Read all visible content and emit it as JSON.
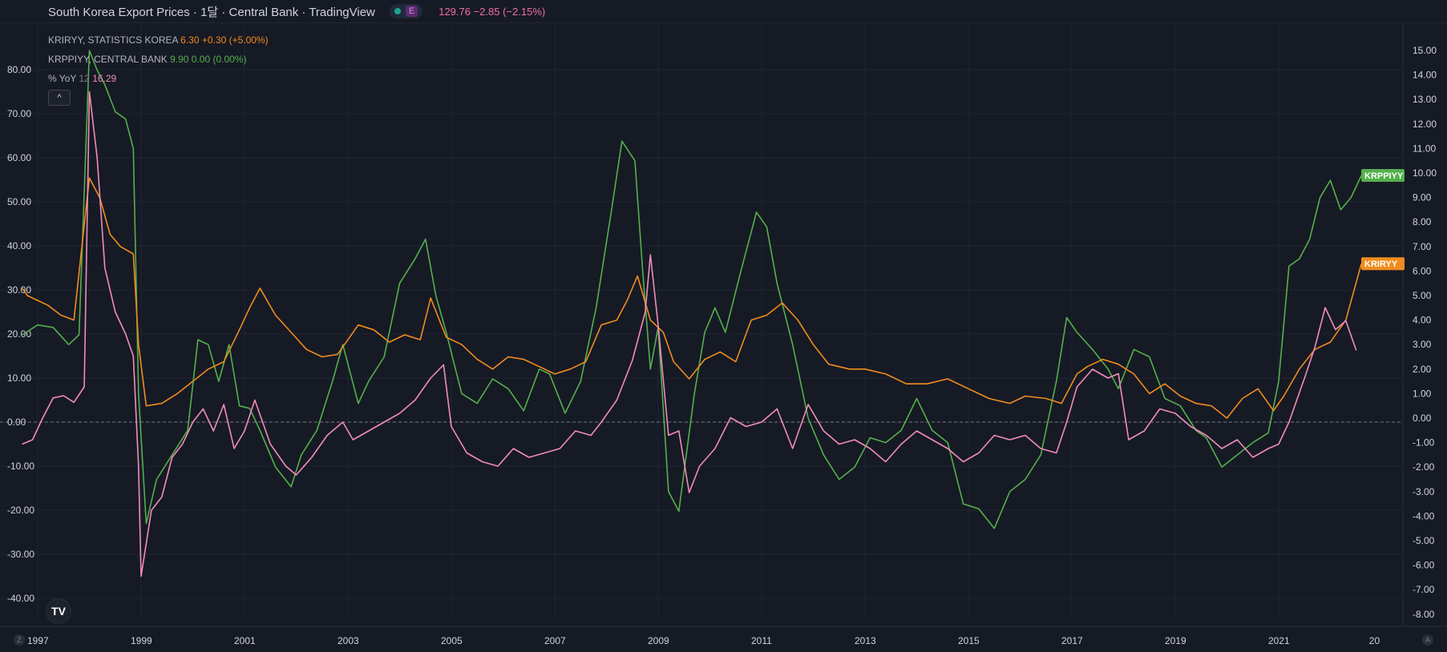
{
  "topbar": {
    "title": "South Korea Export Prices · 1달 · Central Bank · TradingView",
    "badge_letter": "E",
    "price_text": "129.76 −2.85 (−2.15%)"
  },
  "legend": {
    "krir": {
      "name": "KRIRYY, STATISTICS KOREA",
      "value": "6.30",
      "change": "+0.30 (+5.00%)"
    },
    "krpp": {
      "name": "KRPPIYY, CENTRAL BANK",
      "value": "9.90",
      "change": "0.00 (0.00%)"
    },
    "yoy": {
      "name": "% YoY",
      "param": "12",
      "value": "16.29"
    },
    "collapse_icon": "chevron-up-icon"
  },
  "logo_text": "TV",
  "corner_left": "Z",
  "corner_right": "A",
  "colors": {
    "background": "#161a25",
    "krir": "#f08c1e",
    "krpp": "#54b04b",
    "yoy": "#f28cba",
    "grid": "#202431",
    "axis_text": "#d1d4dc"
  },
  "chart_data": {
    "type": "line",
    "x_axis": {
      "ticks": [
        "1997",
        "1999",
        "2001",
        "2003",
        "2005",
        "2007",
        "2009",
        "2011",
        "2013",
        "2015",
        "2017",
        "2019",
        "2021",
        "20"
      ]
    },
    "left_axis": {
      "ticks": [
        "80.00",
        "70.00",
        "60.00",
        "50.00",
        "40.00",
        "30.00",
        "20.00",
        "10.00",
        "0.00",
        "-10.00",
        "-20.00",
        "-30.00",
        "-40.00"
      ],
      "ylim": [
        -45,
        87
      ]
    },
    "right_axis": {
      "ticks": [
        "15.00",
        "14.00",
        "13.00",
        "12.00",
        "11.00",
        "10.00",
        "9.00",
        "8.00",
        "7.00",
        "6.00",
        "5.00",
        "4.00",
        "3.00",
        "2.00",
        "1.00",
        "0.00",
        "-1.00",
        "-2.00",
        "-3.00",
        "-4.00",
        "-5.00",
        "-6.00",
        "-7.00",
        "-8.00"
      ],
      "ylim": [
        -8.5,
        15.3
      ]
    },
    "zero_line": true,
    "series": [
      {
        "name": "KRPPIYY",
        "axis": "right",
        "color": "#54b04b",
        "end_label": "KRPPIYY",
        "x": [
          1996.7,
          1997.0,
          1997.3,
          1997.6,
          1997.8,
          1998.0,
          1998.15,
          1998.3,
          1998.5,
          1998.7,
          1998.85,
          1998.95,
          1999.1,
          1999.3,
          1999.6,
          1999.9,
          2000.1,
          2000.3,
          2000.5,
          2000.7,
          2000.9,
          2001.1,
          2001.3,
          2001.6,
          2001.9,
          2002.1,
          2002.4,
          2002.7,
          2002.9,
          2003.2,
          2003.4,
          2003.7,
          2004.0,
          2004.3,
          2004.5,
          2004.7,
          2004.9,
          2005.2,
          2005.5,
          2005.8,
          2006.1,
          2006.4,
          2006.7,
          2006.9,
          2007.2,
          2007.5,
          2007.8,
          2008.1,
          2008.3,
          2008.55,
          2008.7,
          2008.85,
          2009.0,
          2009.2,
          2009.4,
          2009.7,
          2009.9,
          2010.1,
          2010.3,
          2010.6,
          2010.9,
          2011.1,
          2011.3,
          2011.6,
          2011.9,
          2012.2,
          2012.5,
          2012.8,
          2013.1,
          2013.4,
          2013.7,
          2014.0,
          2014.3,
          2014.6,
          2014.9,
          2015.2,
          2015.5,
          2015.8,
          2016.1,
          2016.4,
          2016.7,
          2016.9,
          2017.1,
          2017.4,
          2017.7,
          2017.9,
          2018.2,
          2018.5,
          2018.8,
          2019.1,
          2019.4,
          2019.6,
          2019.9,
          2020.2,
          2020.5,
          2020.8,
          2021.0,
          2021.2,
          2021.4,
          2021.6,
          2021.8,
          2022.0,
          2022.2,
          2022.4,
          2022.6
        ],
        "y": [
          3.4,
          3.8,
          3.7,
          3.0,
          3.4,
          15.0,
          14.2,
          13.6,
          12.5,
          12.2,
          11.0,
          1.0,
          -4.3,
          -2.5,
          -1.5,
          -0.5,
          3.2,
          3.0,
          1.5,
          3.0,
          0.5,
          0.4,
          -0.5,
          -2.0,
          -2.8,
          -1.5,
          -0.5,
          1.5,
          3.0,
          0.6,
          1.5,
          2.5,
          5.5,
          6.5,
          7.3,
          5.0,
          3.5,
          1.0,
          0.6,
          1.6,
          1.2,
          0.3,
          2.0,
          1.8,
          0.2,
          1.5,
          4.5,
          8.5,
          11.3,
          10.5,
          6.0,
          2.0,
          3.7,
          -3.0,
          -3.8,
          1.0,
          3.5,
          4.5,
          3.5,
          6.0,
          8.4,
          7.8,
          5.5,
          3.0,
          0.0,
          -1.5,
          -2.5,
          -2.0,
          -0.8,
          -1.0,
          -0.5,
          0.8,
          -0.5,
          -1.0,
          -3.5,
          -3.7,
          -4.5,
          -3.0,
          -2.5,
          -1.5,
          1.5,
          4.1,
          3.5,
          2.8,
          2.0,
          1.2,
          2.8,
          2.5,
          0.8,
          0.5,
          -0.5,
          -0.8,
          -2.0,
          -1.5,
          -1.0,
          -0.6,
          1.5,
          6.2,
          6.5,
          7.3,
          9.0,
          9.7,
          8.5,
          9.0,
          9.9
        ]
      },
      {
        "name": "KRIRYY",
        "axis": "right",
        "color": "#f08c1e",
        "end_label": "KRIRYY",
        "x": [
          1996.7,
          1996.8,
          1997.0,
          1997.2,
          1997.45,
          1997.7,
          1998.0,
          1998.2,
          1998.4,
          1998.6,
          1998.85,
          1998.95,
          1999.1,
          1999.4,
          1999.7,
          2000.0,
          2000.3,
          2000.6,
          2000.9,
          2001.1,
          2001.3,
          2001.6,
          2001.9,
          2002.2,
          2002.5,
          2002.8,
          2003.0,
          2003.2,
          2003.5,
          2003.8,
          2004.1,
          2004.4,
          2004.6,
          2004.9,
          2005.2,
          2005.5,
          2005.8,
          2006.1,
          2006.4,
          2006.7,
          2007.0,
          2007.3,
          2007.6,
          2007.9,
          2008.2,
          2008.4,
          2008.6,
          2008.85,
          2009.1,
          2009.3,
          2009.6,
          2009.9,
          2010.2,
          2010.5,
          2010.8,
          2011.1,
          2011.4,
          2011.7,
          2012.0,
          2012.3,
          2012.7,
          2013.0,
          2013.4,
          2013.8,
          2014.2,
          2014.6,
          2015.0,
          2015.4,
          2015.8,
          2016.1,
          2016.5,
          2016.8,
          2017.1,
          2017.3,
          2017.6,
          2017.9,
          2018.2,
          2018.5,
          2018.8,
          2019.1,
          2019.4,
          2019.7,
          2020.0,
          2020.3,
          2020.6,
          2020.9,
          2021.1,
          2021.4,
          2021.7,
          2022.0,
          2022.3,
          2022.6
        ],
        "y": [
          5.3,
          5.0,
          4.8,
          4.6,
          4.2,
          4.0,
          9.8,
          9.0,
          7.5,
          7.0,
          6.7,
          3.0,
          0.5,
          0.6,
          1.0,
          1.5,
          2.0,
          2.3,
          3.6,
          4.5,
          5.3,
          4.2,
          3.5,
          2.8,
          2.5,
          2.6,
          3.2,
          3.8,
          3.6,
          3.1,
          3.4,
          3.2,
          4.9,
          3.3,
          3.0,
          2.4,
          2.0,
          2.5,
          2.4,
          2.1,
          1.8,
          2.0,
          2.3,
          3.8,
          4.0,
          4.8,
          5.8,
          4.0,
          3.5,
          2.3,
          1.6,
          2.4,
          2.7,
          2.3,
          4.0,
          4.2,
          4.7,
          4.0,
          3.0,
          2.2,
          2.0,
          2.0,
          1.8,
          1.4,
          1.4,
          1.6,
          1.2,
          0.8,
          0.6,
          0.9,
          0.8,
          0.6,
          1.8,
          2.1,
          2.4,
          2.2,
          1.8,
          1.0,
          1.4,
          0.9,
          0.6,
          0.5,
          0.0,
          0.8,
          1.2,
          0.3,
          0.9,
          2.0,
          2.8,
          3.1,
          4.0,
          6.3
        ]
      },
      {
        "name": "% YoY",
        "axis": "left",
        "color": "#f28cba",
        "x": [
          1996.7,
          1996.9,
          1997.1,
          1997.3,
          1997.5,
          1997.7,
          1997.9,
          1998.0,
          1998.15,
          1998.3,
          1998.5,
          1998.7,
          1998.85,
          1998.95,
          1999.0,
          1999.2,
          1999.4,
          1999.6,
          1999.8,
          2000.0,
          2000.2,
          2000.4,
          2000.6,
          2000.8,
          2001.0,
          2001.2,
          2001.5,
          2001.8,
          2002.0,
          2002.3,
          2002.6,
          2002.9,
          2003.1,
          2003.4,
          2003.7,
          2004.0,
          2004.3,
          2004.6,
          2004.85,
          2005.0,
          2005.3,
          2005.6,
          2005.9,
          2006.2,
          2006.5,
          2006.8,
          2007.1,
          2007.4,
          2007.7,
          2007.9,
          2008.2,
          2008.5,
          2008.75,
          2008.85,
          2009.0,
          2009.2,
          2009.4,
          2009.6,
          2009.8,
          2010.1,
          2010.4,
          2010.7,
          2011.0,
          2011.3,
          2011.6,
          2011.9,
          2012.2,
          2012.5,
          2012.8,
          2013.1,
          2013.4,
          2013.7,
          2014.0,
          2014.3,
          2014.6,
          2014.9,
          2015.2,
          2015.5,
          2015.8,
          2016.1,
          2016.4,
          2016.7,
          2016.9,
          2017.1,
          2017.4,
          2017.7,
          2017.9,
          2018.1,
          2018.4,
          2018.7,
          2019.0,
          2019.3,
          2019.6,
          2019.9,
          2020.2,
          2020.5,
          2020.8,
          2021.0,
          2021.2,
          2021.5,
          2021.7,
          2021.9,
          2022.1,
          2022.3,
          2022.5
        ],
        "y": [
          -5.0,
          -4.0,
          1.0,
          5.5,
          6.0,
          4.5,
          8.0,
          75.0,
          60.0,
          35.0,
          25.0,
          20.0,
          15.0,
          -10.0,
          -35.0,
          -20.0,
          -17.0,
          -8.0,
          -5.0,
          0.0,
          3.0,
          -2.0,
          4.0,
          -6.0,
          -2.0,
          5.0,
          -5.0,
          -10.0,
          -12.0,
          -8.0,
          -3.0,
          0.0,
          -4.0,
          -2.0,
          0.0,
          2.0,
          5.0,
          10.0,
          13.0,
          -1.0,
          -7.0,
          -9.0,
          -10.0,
          -6.0,
          -8.0,
          -7.0,
          -6.0,
          -2.0,
          -3.0,
          0.0,
          5.0,
          14.0,
          25.0,
          38.0,
          22.0,
          -3.0,
          -2.0,
          -16.0,
          -10.0,
          -6.0,
          1.0,
          -1.0,
          0.0,
          3.0,
          -6.0,
          4.0,
          -2.0,
          -5.0,
          -4.0,
          -6.0,
          -9.0,
          -5.0,
          -2.0,
          -4.0,
          -6.0,
          -9.0,
          -7.0,
          -3.0,
          -4.0,
          -3.0,
          -6.0,
          -7.0,
          0.0,
          8.0,
          12.0,
          10.0,
          11.0,
          -4.0,
          -2.0,
          3.0,
          2.0,
          -1.0,
          -3.0,
          -6.0,
          -4.0,
          -8.0,
          -6.0,
          -5.0,
          0.0,
          10.0,
          17.0,
          26.0,
          21.0,
          23.0,
          16.29
        ]
      }
    ]
  }
}
